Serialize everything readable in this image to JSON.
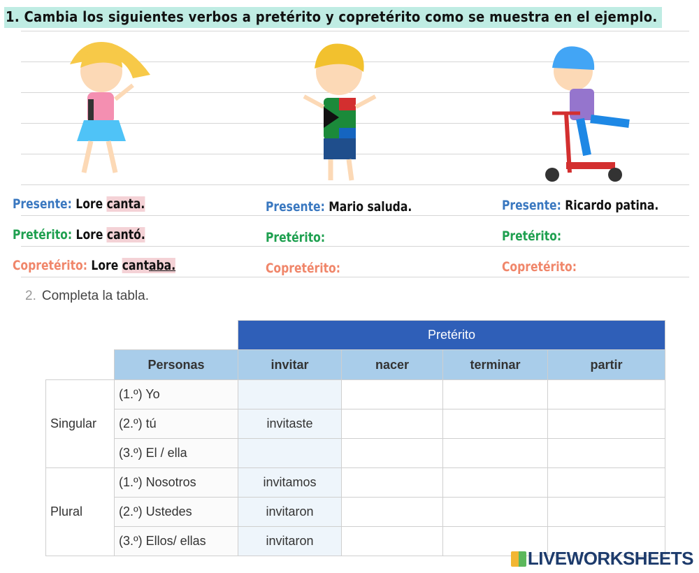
{
  "title": "1. Cambia los siguientes verbos a pretérito y copretérito como se muestra en el ejemplo.",
  "examples": [
    {
      "presente_label": "Presente:",
      "presente": "Lore",
      "presente_hl": "canta.",
      "preterito_label": "Pretérito:",
      "preterito": "Lore",
      "preterito_hl": "cantó.",
      "copreterito_label": "Copretérito:",
      "copreterito": "Lore",
      "copreterito_hl_a": "cant",
      "copreterito_hl_b": "aba."
    },
    {
      "presente_label": "Presente:",
      "presente": "Mario saluda.",
      "preterito_label": "Pretérito:",
      "copreterito_label": "Copretérito:"
    },
    {
      "presente_label": "Presente:",
      "presente": "Ricardo patina.",
      "preterito_label": "Pretérito:",
      "copreterito_label": "Copretérito:"
    }
  ],
  "exercise2": {
    "number": "2.",
    "title": "Completa la tabla."
  },
  "table": {
    "group_header": "Pretérito",
    "columns": [
      "Personas",
      "invitar",
      "nacer",
      "terminar",
      "partir"
    ],
    "groups": [
      "Singular",
      "Plural"
    ],
    "rows": [
      {
        "persona": "(1.º) Yo",
        "invitar": ""
      },
      {
        "persona": "(2.º) tú",
        "invitar": "invitaste"
      },
      {
        "persona": "(3.º) El / ella",
        "invitar": ""
      },
      {
        "persona": "(1.º) Nosotros",
        "invitar": "invitamos"
      },
      {
        "persona": "(2.º) Ustedes",
        "invitar": "invitaron"
      },
      {
        "persona": "(3.º) Ellos/ ellas",
        "invitar": "invitaron"
      }
    ]
  },
  "logo": "LIVEWORKSHEETS"
}
